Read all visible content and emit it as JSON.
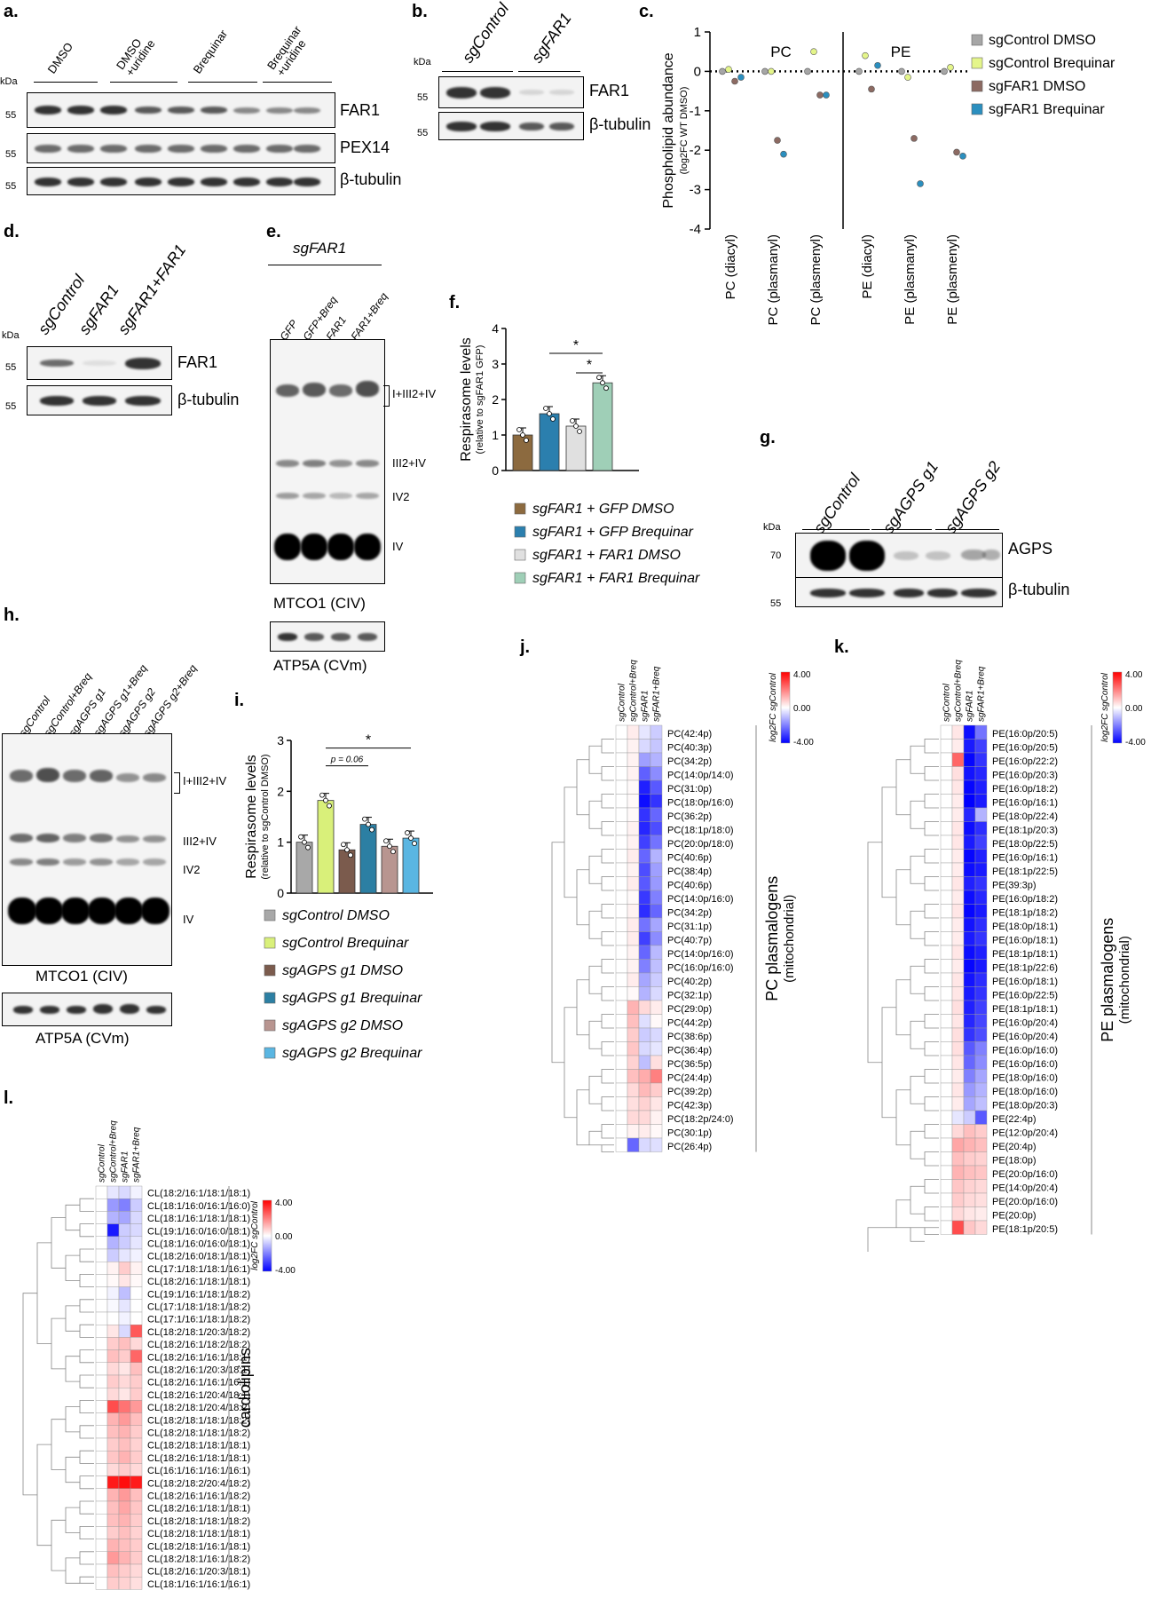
{
  "panels": {
    "a": "a.",
    "b": "b.",
    "c": "c.",
    "d": "d.",
    "e": "e.",
    "f": "f.",
    "g": "g.",
    "h": "h.",
    "i": "i.",
    "j": "j.",
    "k": "k.",
    "l": "l."
  },
  "panel_a": {
    "kda": "kDa",
    "lanes": [
      "DMSO",
      "DMSO\n+uridine",
      "Brequinar",
      "Brequinar\n+uridine"
    ],
    "markers": [
      "55",
      "55",
      "55"
    ],
    "blots": [
      "FAR1",
      "PEX14",
      "β-tubulin"
    ]
  },
  "panel_b": {
    "kda": "kDa",
    "lanes": [
      "sgControl",
      "sgFAR1"
    ],
    "markers": [
      "55",
      "55"
    ],
    "blots": [
      "FAR1",
      "β-tubulin"
    ]
  },
  "panel_d": {
    "kda": "kDa",
    "lanes": [
      "sgControl",
      "sgFAR1",
      "sgFAR1+FAR1"
    ],
    "markers": [
      "55",
      "55"
    ],
    "blots": [
      "FAR1",
      "β-tubulin"
    ]
  },
  "panel_e": {
    "header": "sgFAR1",
    "lanes": [
      "GFP",
      "GFP+Breq",
      "FAR1",
      "FAR1+Breq"
    ],
    "bands": [
      "I+III2+IV",
      "III2+IV",
      "IV2",
      "IV"
    ],
    "gel_label": "MTCO1 (CIV)",
    "loading_label": "ATP5A (CVm)"
  },
  "panel_g": {
    "kda": "kDa",
    "lanes": [
      "sgControl",
      "sgAGPS g1",
      "sgAGPS g2"
    ],
    "markers": [
      "70",
      "55"
    ],
    "blots": [
      "AGPS",
      "β-tubulin"
    ]
  },
  "panel_h": {
    "lanes": [
      "sgControl",
      "sgControl+Breq",
      "sgAGPS g1",
      "sgAGPS g1+Breq",
      "sgAGPS g2",
      "sgAGPS g2+Breq"
    ],
    "bands": [
      "I+III2+IV",
      "III2+IV",
      "IV2",
      "IV"
    ],
    "gel_label": "MTCO1 (CIV)",
    "loading_label": "ATP5A (CVm)"
  },
  "chart_data": [
    {
      "panel": "c",
      "type": "scatter",
      "ylabel": "Phospholipid abundance",
      "ylabel_sub": "(log2FC WT DMSO)",
      "ylim": [
        -4,
        1
      ],
      "yticks": [
        "1",
        "0",
        "-1",
        "-2",
        "-3",
        "-4"
      ],
      "groups": [
        "PC",
        "PE"
      ],
      "categories": [
        "PC (diacyl)",
        "PC (plasmanyl)",
        "PC (plasmenyl)",
        "PE (diacyl)",
        "PE (plasmanyl)",
        "PE (plasmenyl)"
      ],
      "colors": [
        "#a6a6a6",
        "#e4f58a",
        "#8c6a62",
        "#2b8fbf"
      ],
      "series": [
        {
          "name": "sgControl DMSO",
          "values": [
            0.0,
            0.0,
            0.0,
            0.0,
            0.0,
            0.0
          ]
        },
        {
          "name": "sgControl Brequinar",
          "values": [
            0.05,
            0.0,
            0.5,
            0.4,
            -0.15,
            0.1
          ]
        },
        {
          "name": "sgFAR1 DMSO",
          "values": [
            -0.25,
            -1.75,
            -0.6,
            -0.45,
            -1.7,
            -2.05
          ]
        },
        {
          "name": "sgFAR1 Brequinar",
          "values": [
            -0.15,
            -2.1,
            -0.6,
            0.15,
            -2.85,
            -2.15
          ]
        }
      ],
      "legend_position": "right"
    },
    {
      "panel": "f",
      "type": "bar",
      "ylabel": "Respirasome levels",
      "ylabel_sub": "(relative to sgFAR1 GFP)",
      "ylim": [
        0,
        4
      ],
      "yticks": [
        "0",
        "1",
        "2",
        "3",
        "4"
      ],
      "series": [
        {
          "name": "sgFAR1 + GFP DMSO",
          "values": [
            1.0
          ],
          "color": "#8c6a3f"
        },
        {
          "name": "sgFAR1 + GFP Brequinar",
          "values": [
            1.6
          ],
          "color": "#2b7fae"
        },
        {
          "name": "sgFAR1 + FAR1 DMSO",
          "values": [
            1.25
          ],
          "color": "#e0e0e0"
        },
        {
          "name": "sgFAR1 + FAR1 Brequinar",
          "values": [
            2.47
          ],
          "color": "#9fcfb7"
        }
      ],
      "annotations": [
        "*",
        "*"
      ]
    },
    {
      "panel": "i",
      "type": "bar",
      "ylabel": "Respirasome levels",
      "ylabel_sub": "(relative to sgControl DMSO)",
      "ylim": [
        0,
        3
      ],
      "yticks": [
        "0",
        "1",
        "2",
        "3"
      ],
      "series": [
        {
          "name": "sgControl DMSO",
          "values": [
            1.0
          ],
          "color": "#a8a8a8"
        },
        {
          "name": "sgControl Brequinar",
          "values": [
            1.82
          ],
          "color": "#d9f07a"
        },
        {
          "name": "sgAGPS g1 DMSO",
          "values": [
            0.85
          ],
          "color": "#7b5b4d"
        },
        {
          "name": "sgAGPS g1 Brequinar",
          "values": [
            1.35
          ],
          "color": "#2c7fa3"
        },
        {
          "name": "sgAGPS g2 DMSO",
          "values": [
            0.92
          ],
          "color": "#b89590"
        },
        {
          "name": "sgAGPS g2 Brequinar",
          "values": [
            1.08
          ],
          "color": "#5ab6e2"
        }
      ],
      "annotations": [
        "*",
        "p = 0.06"
      ]
    },
    {
      "panel": "j",
      "type": "heatmap",
      "columns": [
        "sgControl",
        "sgControl+Breq",
        "sgFAR1",
        "sgFAR1+Breq"
      ],
      "scale_label": "log2FC sgControl",
      "scale_ticks": [
        "4.00",
        "0.00",
        "-4.00"
      ],
      "group_label": "PC plasmalogens",
      "group_sub": "(mitochondrial)",
      "rows": [
        "PC(42:4p)",
        "PC(40:3p)",
        "PC(34:2p)",
        "PC(14:0p/14:0)",
        "PC(31:0p)",
        "PC(18:0p/16:0)",
        "PC(36:2p)",
        "PC(18:1p/18:0)",
        "PC(20:0p/18:0)",
        "PC(40:6p)",
        "PC(38:4p)",
        "PC(40:6p)",
        "PC(14:0p/16:0)",
        "PC(34:2p)",
        "PC(31:1p)",
        "PC(40:7p)",
        "PC(14:0p/16:0)",
        "PC(16:0p/16:0)",
        "PC(40:2p)",
        "PC(32:1p)",
        "PC(29:0p)",
        "PC(44:2p)",
        "PC(38:6p)",
        "PC(36:4p)",
        "PC(36:5p)",
        "PC(24:4p)",
        "PC(39:2p)",
        "PC(42:3p)",
        "PC(18:2p/24:0)",
        "PC(30:1p)",
        "PC(26:4p)"
      ],
      "values": [
        [
          0,
          0.3,
          -0.4,
          -0.8
        ],
        [
          0,
          0.2,
          -0.6,
          -0.9
        ],
        [
          0,
          0.2,
          -1.5,
          -1.2
        ],
        [
          0,
          0.2,
          -2.5,
          -1.8
        ],
        [
          0,
          0.1,
          -3.5,
          -2.6
        ],
        [
          0,
          0.1,
          -3.8,
          -3.2
        ],
        [
          0,
          0.1,
          -3.2,
          -2.4
        ],
        [
          0,
          0.2,
          -3.4,
          -2.8
        ],
        [
          0,
          0.2,
          -3.0,
          -2.2
        ],
        [
          0,
          0.3,
          -2.4,
          -1.2
        ],
        [
          0,
          0.2,
          -2.8,
          -1.5
        ],
        [
          0,
          0.3,
          -2.6,
          -1.6
        ],
        [
          0,
          0.1,
          -3.1,
          -2.0
        ],
        [
          0,
          0.2,
          -3.3,
          -2.4
        ],
        [
          0,
          0.3,
          -2.2,
          -1.4
        ],
        [
          0,
          0.3,
          -3.0,
          -1.8
        ],
        [
          0,
          0.2,
          -2.4,
          -1.1
        ],
        [
          0,
          0.2,
          -2.0,
          -1.0
        ],
        [
          0,
          0.3,
          -1.4,
          -0.8
        ],
        [
          0,
          0.1,
          -1.2,
          -0.6
        ],
        [
          0,
          1.2,
          0.6,
          0.3
        ],
        [
          0,
          1.0,
          -0.5,
          0.1
        ],
        [
          0,
          0.8,
          -0.8,
          -0.6
        ],
        [
          0,
          0.9,
          -0.6,
          -0.4
        ],
        [
          0,
          0.7,
          -1.0,
          0.5
        ],
        [
          0,
          1.0,
          1.3,
          2.0
        ],
        [
          0,
          0.6,
          1.1,
          0.8
        ],
        [
          0,
          0.5,
          0.7,
          0.4
        ],
        [
          0,
          0.6,
          0.6,
          0.2
        ],
        [
          0,
          0.2,
          0.3,
          0.1
        ],
        [
          0,
          -2.4,
          -0.6,
          -0.5
        ]
      ]
    },
    {
      "panel": "k",
      "type": "heatmap",
      "columns": [
        "sgControl",
        "sgControl+Breq",
        "sgFAR1",
        "sgFAR1+Breq"
      ],
      "scale_label": "log2FC sgControl",
      "scale_ticks": [
        "4.00",
        "0.00",
        "-4.00"
      ],
      "group_label": "PE plasmalogens",
      "group_sub": "(mitochondrial)",
      "rows": [
        "PE(16:0p/20:5)",
        "PE(16:0p/20:5)",
        "PE(16:0p/22:2)",
        "PE(16:0p/20:3)",
        "PE(16:0p/18:2)",
        "PE(16:0p/16:1)",
        "PE(18:0p/22:4)",
        "PE(18:1p/20:3)",
        "PE(18:0p/22:5)",
        "PE(16:0p/16:1)",
        "PE(18:1p/22:5)",
        "PE(39:3p)",
        "PE(16:0p/18:2)",
        "PE(18:1p/18:2)",
        "PE(18:0p/18:1)",
        "PE(16:0p/18:1)",
        "PE(18:1p/18:1)",
        "PE(18:1p/22:6)",
        "PE(16:0p/18:1)",
        "PE(16:0p/22:5)",
        "PE(18:1p/18:1)",
        "PE(16:0p/20:4)",
        "PE(16:0p/20:4)",
        "PE(16:0p/16:0)",
        "PE(16:0p/16:0)",
        "PE(18:0p/16:0)",
        "PE(18:0p/16:0)",
        "PE(18:0p/20:3)",
        "PE(22:4p)",
        "PE(12:0p/20:4)",
        "PE(20:4p)",
        "PE(18:0p)",
        "PE(20:0p/16:0)",
        "PE(14:0p/20:4)",
        "PE(20:0p/16:0)",
        "PE(20:0p)",
        "PE(18:1p/20:5)"
      ],
      "values": [
        [
          0,
          0.4,
          -3.8,
          -2.2
        ],
        [
          0,
          0.3,
          -3.6,
          -3.0
        ],
        [
          0,
          2.4,
          -3.9,
          -3.2
        ],
        [
          0,
          0.5,
          -3.7,
          -3.4
        ],
        [
          0,
          0.4,
          -3.9,
          -3.5
        ],
        [
          0,
          0.3,
          -4.0,
          -3.6
        ],
        [
          0,
          0.3,
          -3.4,
          -1.2
        ],
        [
          0,
          0.4,
          -3.8,
          -3.3
        ],
        [
          0,
          0.4,
          -3.6,
          -3.0
        ],
        [
          0,
          0.3,
          -3.9,
          -3.5
        ],
        [
          0,
          0.3,
          -3.8,
          -3.6
        ],
        [
          0,
          0.4,
          -3.5,
          -3.2
        ],
        [
          0,
          0.3,
          -3.8,
          -3.4
        ],
        [
          0,
          0.4,
          -3.9,
          -3.6
        ],
        [
          0,
          0.3,
          -3.7,
          -3.3
        ],
        [
          0,
          0.3,
          -3.6,
          -3.2
        ],
        [
          0,
          0.4,
          -3.8,
          -3.5
        ],
        [
          0,
          0.3,
          -3.9,
          -3.6
        ],
        [
          0,
          0.4,
          -3.7,
          -3.3
        ],
        [
          0,
          0.4,
          -3.6,
          -3.2
        ],
        [
          0,
          0.5,
          -3.5,
          -3.0
        ],
        [
          0,
          0.4,
          -3.4,
          -2.9
        ],
        [
          0,
          0.5,
          -3.2,
          -2.8
        ],
        [
          0,
          0.5,
          -2.6,
          -2.0
        ],
        [
          0,
          0.4,
          -2.4,
          -1.8
        ],
        [
          0,
          0.3,
          -2.0,
          -1.4
        ],
        [
          0,
          0.4,
          -1.6,
          -1.2
        ],
        [
          0,
          0.3,
          -1.4,
          -1.0
        ],
        [
          0,
          -0.4,
          -0.8,
          -2.6
        ],
        [
          0,
          0.6,
          1.0,
          0.8
        ],
        [
          0,
          1.4,
          1.2,
          1.0
        ],
        [
          0,
          1.0,
          0.8,
          0.7
        ],
        [
          0,
          1.2,
          1.0,
          0.9
        ],
        [
          0,
          0.9,
          0.7,
          0.6
        ],
        [
          0,
          0.8,
          0.6,
          0.5
        ],
        [
          0,
          0.6,
          0.4,
          0.3
        ],
        [
          0,
          2.8,
          0.9,
          0.6
        ]
      ]
    },
    {
      "panel": "l",
      "type": "heatmap",
      "columns": [
        "sgControl",
        "sgControl+Breq",
        "sgFAR1",
        "sgFAR1+Breq"
      ],
      "scale_label": "log2FC sgControl",
      "scale_ticks": [
        "4.00",
        "0.00",
        "-4.00"
      ],
      "group_label": "cardiolipins",
      "rows": [
        "CL(18:2/16:1/18:1/18:1)",
        "CL(18:1/16:0/16:1/16:0)",
        "CL(18:1/16:1/18:1/18:1)",
        "CL(19:1/16:0/16:0/18:1)",
        "CL(18:1/16:0/16:0/18:1)",
        "CL(18:2/16:0/18:1/18:1)",
        "CL(17:1/18:1/18:1/16:1)",
        "CL(18:2/16:1/18:1/18:1)",
        "CL(19:1/16:1/18:1/18:2)",
        "CL(17:1/18:1/18:1/18:2)",
        "CL(17:1/16:1/18:1/18:2)",
        "CL(18:2/18:1/20:3/18:2)",
        "CL(18:2/16:1/18:2/18:2)",
        "CL(18:2/16:1/16:1/18:1)",
        "CL(18:2/16:1/20:3/18:1)",
        "CL(18:2/16:1/16:1/16:1)",
        "CL(18:2/16:1/20:4/18:1)",
        "CL(18:2/18:1/20:4/18:2)",
        "CL(18:2/18:1/18:1/18:2)",
        "CL(18:2/18:1/18:1/18:2)",
        "CL(18:2/18:1/18:1/18:1)",
        "CL(18:2/16:1/18:1/18:1)",
        "CL(16:1/16:1/16:1/16:1)",
        "CL(18:2/18:2/20:4/18:2)",
        "CL(18:2/16:1/16:1/18:2)",
        "CL(18:2/16:1/18:1/18:1)",
        "CL(18:2/18:1/18:1/18:2)",
        "CL(18:2/18:1/18:1/18:1)",
        "CL(18:2/18:1/16:1/18:1)",
        "CL(18:2/18:1/16:1/18:2)",
        "CL(18:2/16:1/20:3/18:1)",
        "CL(18:1/16:1/16:1/16:1)"
      ],
      "values": [
        [
          0,
          -0.4,
          -0.6,
          -0.2
        ],
        [
          0,
          -1.6,
          -2.0,
          -0.8
        ],
        [
          0,
          -1.2,
          -1.4,
          -0.6
        ],
        [
          0,
          -3.6,
          -0.8,
          -0.6
        ],
        [
          0,
          -1.2,
          -0.8,
          -0.4
        ],
        [
          0,
          -0.8,
          -0.4,
          -0.2
        ],
        [
          0,
          0.2,
          0.8,
          0.2
        ],
        [
          0,
          0.1,
          0.4,
          0.1
        ],
        [
          0,
          -0.2,
          -1.0,
          0.0
        ],
        [
          0,
          -0.1,
          -0.4,
          0.0
        ],
        [
          0,
          0.0,
          -0.2,
          0.0
        ],
        [
          0,
          0.4,
          -0.6,
          2.6
        ],
        [
          0,
          0.8,
          1.0,
          0.6
        ],
        [
          0,
          1.0,
          0.8,
          2.4
        ],
        [
          0,
          0.6,
          0.4,
          1.0
        ],
        [
          0,
          0.8,
          0.6,
          0.8
        ],
        [
          0,
          0.6,
          0.4,
          0.8
        ],
        [
          0,
          2.8,
          2.2,
          1.6
        ],
        [
          0,
          1.2,
          1.6,
          1.0
        ],
        [
          0,
          1.0,
          1.2,
          0.8
        ],
        [
          0,
          0.8,
          1.0,
          0.7
        ],
        [
          0,
          0.9,
          1.2,
          0.8
        ],
        [
          0,
          0.6,
          0.8,
          0.6
        ],
        [
          0,
          3.6,
          3.8,
          3.6
        ],
        [
          0,
          1.2,
          1.6,
          1.0
        ],
        [
          0,
          1.0,
          1.4,
          0.9
        ],
        [
          0,
          1.0,
          1.2,
          0.8
        ],
        [
          0,
          0.8,
          1.0,
          0.7
        ],
        [
          0,
          1.2,
          1.0,
          0.8
        ],
        [
          0,
          1.6,
          1.2,
          0.8
        ],
        [
          0,
          1.0,
          0.8,
          0.6
        ],
        [
          0,
          0.8,
          0.7,
          0.5
        ]
      ]
    }
  ]
}
